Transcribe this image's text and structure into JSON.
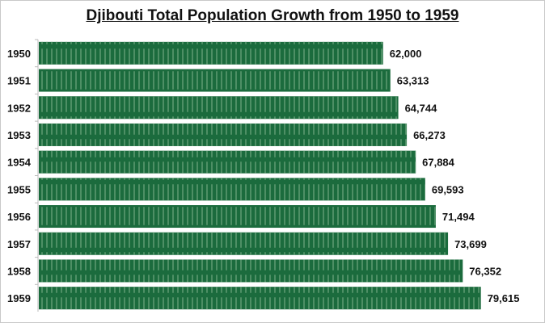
{
  "chart_data": {
    "type": "bar",
    "orientation": "horizontal",
    "title": "Djibouti Total Population Growth from 1950 to 1959",
    "categories": [
      "1950",
      "1951",
      "1952",
      "1953",
      "1954",
      "1955",
      "1956",
      "1957",
      "1958",
      "1959"
    ],
    "values": [
      62000,
      63313,
      64744,
      66273,
      67884,
      69593,
      71494,
      73699,
      76352,
      79615
    ],
    "data_labels": [
      "62,000",
      "63,313",
      "64,744",
      "66,273",
      "67,884",
      "69,593",
      "71,494",
      "73,699",
      "76,352",
      "79,615"
    ],
    "xlabel": "",
    "ylabel": "",
    "xlim": [
      0,
      90000
    ],
    "grid": false,
    "legend": "none",
    "colors": {
      "bar": "#1b6b3d",
      "stripe": "#5e9a72"
    }
  }
}
